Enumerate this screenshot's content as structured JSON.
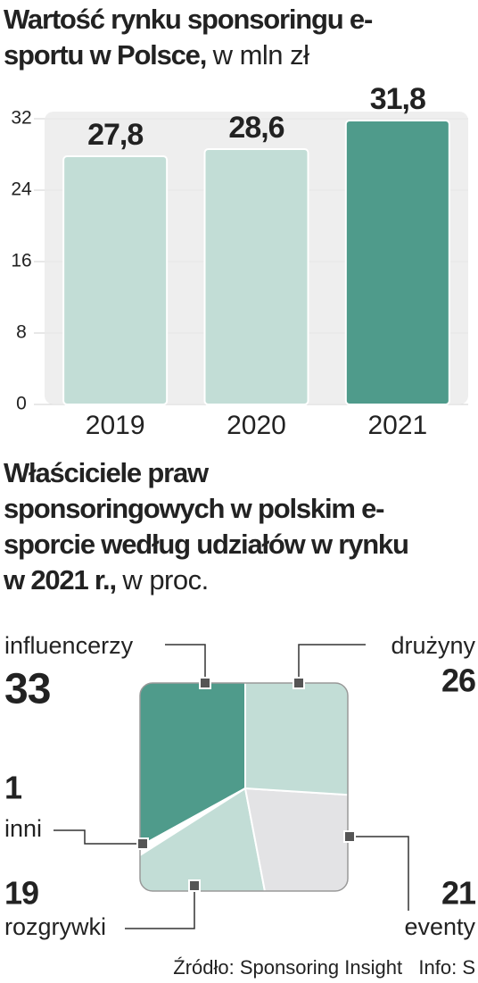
{
  "chart_data": [
    {
      "type": "bar",
      "title": "Wartość rynku sponsoringu e-sportu w Polsce,",
      "subtitle": "w mln zł",
      "categories": [
        "2019",
        "2020",
        "2021"
      ],
      "values": [
        27.8,
        28.6,
        31.8
      ],
      "value_labels": [
        "27,8",
        "28,6",
        "31,8"
      ],
      "colors": [
        "#c2ddd6",
        "#c2ddd6",
        "#4f9b8b"
      ],
      "ylim": [
        0,
        32
      ],
      "yticks": [
        0,
        8,
        16,
        24,
        32
      ],
      "grid": true
    },
    {
      "type": "pie",
      "title": "Właściciele praw sponsoringowych w polskim e-sporcie według udziałów w rynku w 2021 r.,",
      "subtitle": "w proc.",
      "categories": [
        "influencerzy",
        "inni",
        "rozgrywki",
        "eventy",
        "drużyny"
      ],
      "values": [
        33,
        1,
        19,
        21,
        26
      ],
      "colors": [
        "#4f9b8b",
        "#ffffff",
        "#c2ddd6",
        "#e3e3e5",
        "#c2ddd6"
      ]
    }
  ],
  "source": "Źródło: Sponsoring Insight   Info: S"
}
